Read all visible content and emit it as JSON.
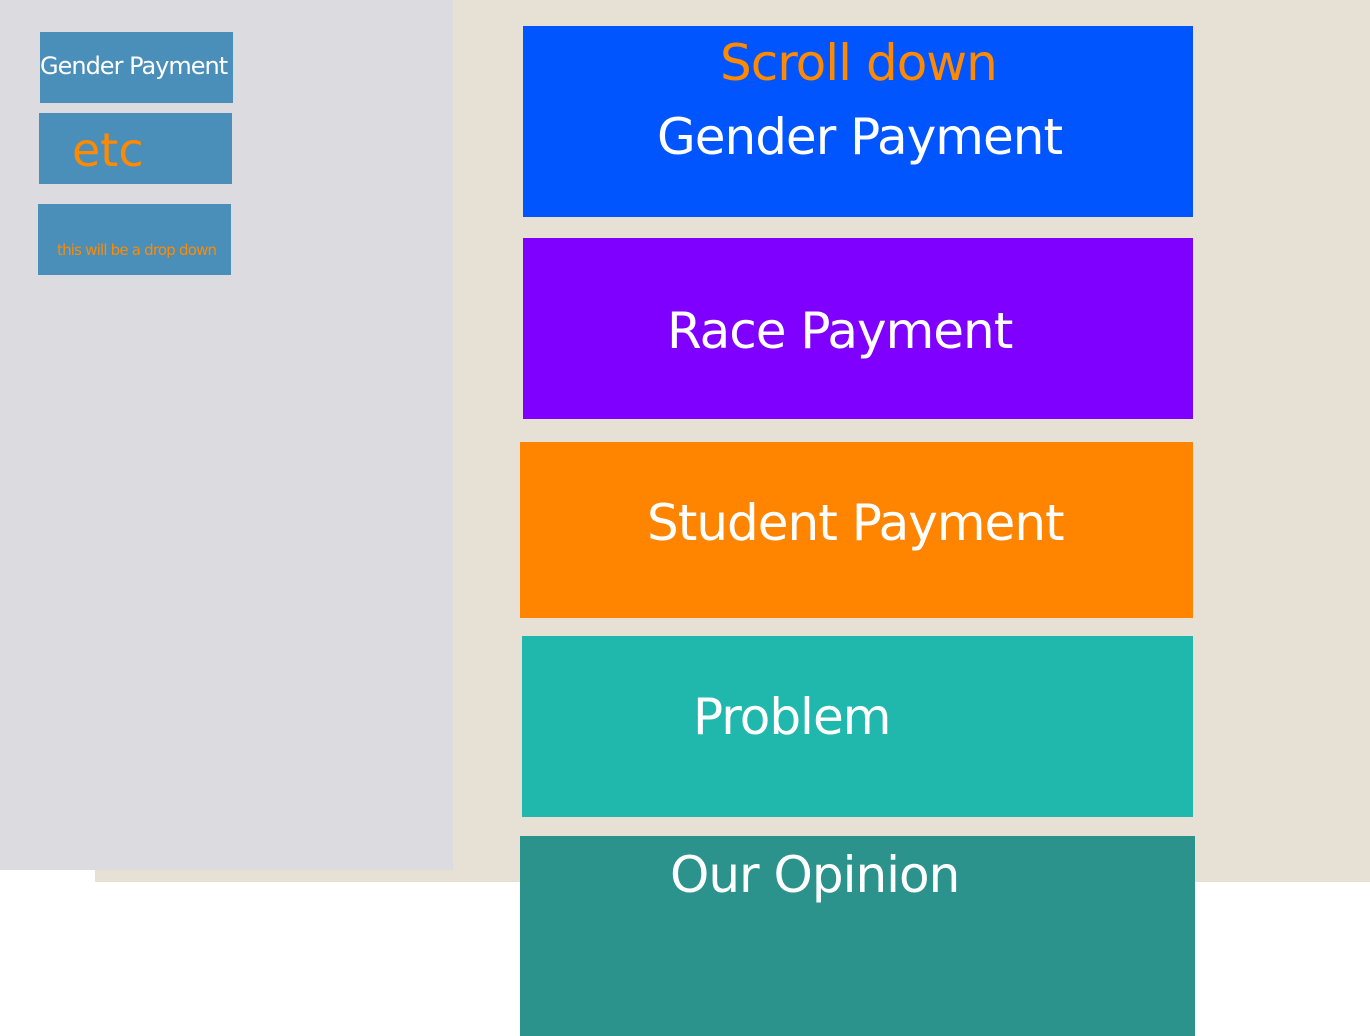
{
  "sidebar": {
    "items": [
      {
        "label": "Gender Payment"
      },
      {
        "label": "etc"
      },
      {
        "label": "this will be a drop down"
      }
    ]
  },
  "main": {
    "scroll_hint": "Scroll down",
    "cards": [
      {
        "label": "Gender Payment",
        "color": "#0055ff"
      },
      {
        "label": "Race Payment",
        "color": "#8000ff"
      },
      {
        "label": "Student Payment",
        "color": "#ff8400"
      },
      {
        "label": "Problem",
        "color": "#20b8ad"
      },
      {
        "label": "Our Opinion",
        "color": "#2b938c"
      }
    ]
  },
  "colors": {
    "accent_text": "#ff8a00",
    "sidebar_button": "#4a8fba",
    "sidebar_bg": "#dbdbe0",
    "page_bg": "#e6e0d5"
  }
}
